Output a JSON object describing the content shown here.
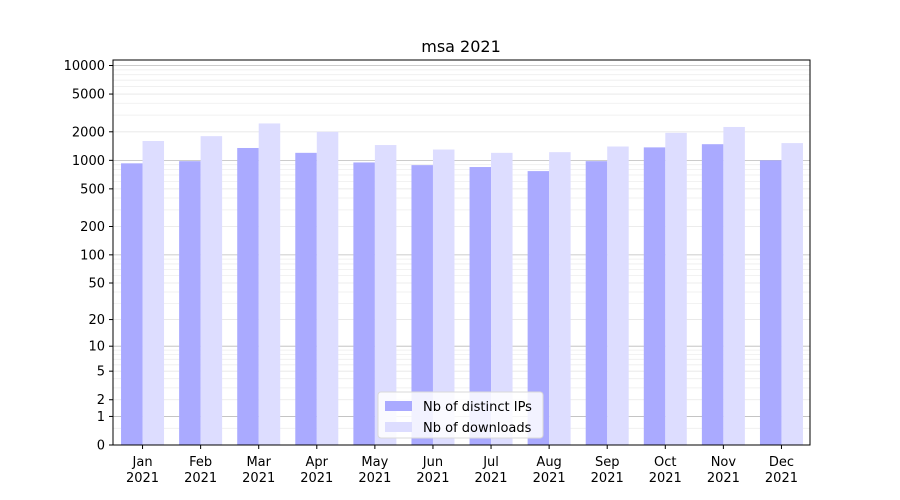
{
  "chart_data": {
    "type": "bar",
    "title": "msa 2021",
    "xlabel": "",
    "ylabel": "",
    "yscale": "symlog",
    "ylim": [
      0,
      10000
    ],
    "yticks": [
      0,
      1,
      2,
      5,
      10,
      20,
      50,
      100,
      200,
      500,
      1000,
      2000,
      5000,
      10000
    ],
    "grid": "y",
    "legend_position": "bottom-center",
    "categories": [
      "Jan\n2021",
      "Feb\n2021",
      "Mar\n2021",
      "Apr\n2021",
      "May\n2021",
      "Jun\n2021",
      "Jul\n2021",
      "Aug\n2021",
      "Sep\n2021",
      "Oct\n2021",
      "Nov\n2021",
      "Dec\n2021"
    ],
    "series": [
      {
        "name": "Nb of distinct IPs",
        "color": "#aaaaff",
        "values": [
          930,
          980,
          1350,
          1200,
          950,
          890,
          850,
          770,
          980,
          1370,
          1480,
          1000
        ]
      },
      {
        "name": "Nb of downloads",
        "color": "#ddddff",
        "values": [
          1600,
          1800,
          2450,
          2000,
          1450,
          1300,
          1200,
          1220,
          1400,
          1950,
          2250,
          1520
        ]
      }
    ]
  }
}
